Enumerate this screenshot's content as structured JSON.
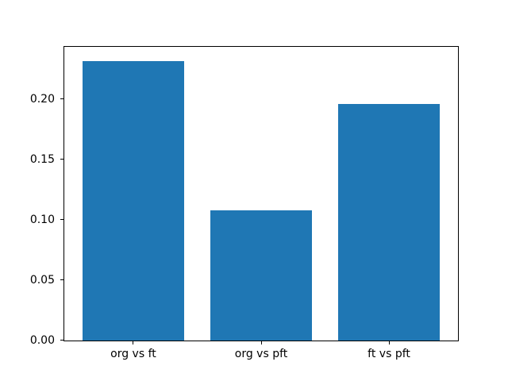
{
  "figure": {
    "background": "#ffffff",
    "title": ""
  },
  "chart_data": {
    "type": "bar",
    "categories": [
      "org vs ft",
      "org vs pft",
      "ft vs pft"
    ],
    "values": [
      0.232,
      0.108,
      0.196
    ],
    "title": "",
    "xlabel": "",
    "ylabel": "",
    "ylim": [
      0,
      0.2436
    ],
    "xlim": [
      -0.54,
      2.54
    ],
    "yticks": [
      0,
      0.05,
      0.1,
      0.15,
      0.2
    ],
    "ytick_labels": [
      "0.00",
      "0.05",
      "0.10",
      "0.15",
      "0.20"
    ],
    "bar_width": 0.8,
    "bar_color": "#1f77b4",
    "spine_color": "#000000",
    "text_color": "#000000",
    "grid": false,
    "legend": false
  }
}
